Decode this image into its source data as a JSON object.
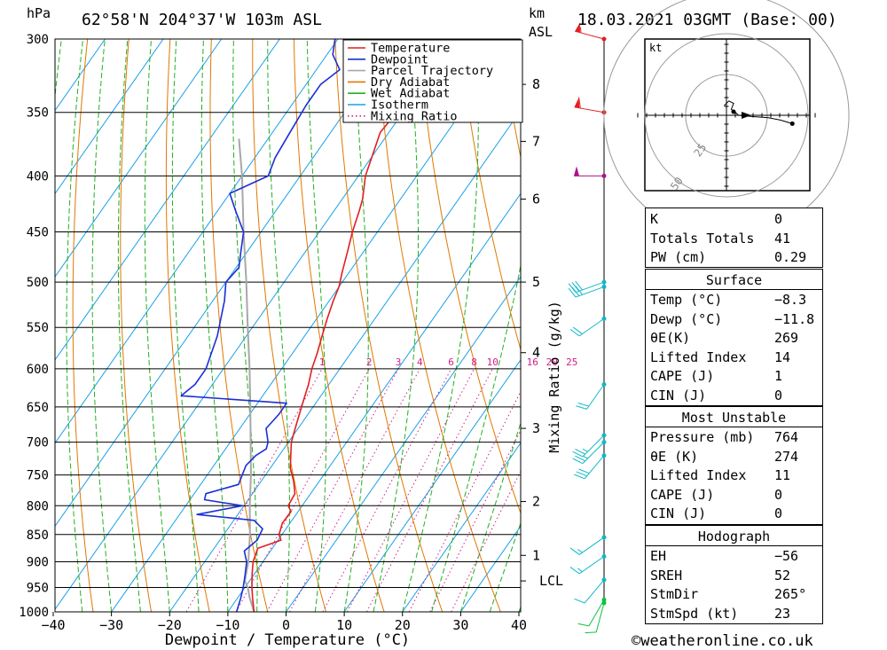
{
  "header": {
    "unit_hpa": "hPa",
    "location": "62°58'N 204°37'W 103m ASL",
    "unit_km": "km",
    "unit_asl": "ASL",
    "datetime": "18.03.2021 03GMT (Base: 00)"
  },
  "chart_data": {
    "type": "skewt",
    "title": "62°58'N 204°37'W 103m ASL",
    "xlabel": "Dewpoint / Temperature (°C)",
    "ylabel_right": "Mixing Ratio (g/kg)",
    "xlim": [
      -40,
      40
    ],
    "ylim_hpa": [
      1000,
      300
    ],
    "x_ticks": [
      -40,
      -30,
      -20,
      -10,
      0,
      10,
      20,
      30,
      40
    ],
    "x_tick_labels": [
      "−40",
      "−30",
      "−20",
      "−10",
      "0",
      "10",
      "20",
      "30",
      "40"
    ],
    "pressure_levels": [
      300,
      350,
      400,
      450,
      500,
      550,
      600,
      650,
      700,
      750,
      800,
      850,
      900,
      950,
      1000
    ],
    "height_km": [
      {
        "label": "8",
        "p": 330
      },
      {
        "label": "7",
        "p": 372
      },
      {
        "label": "6",
        "p": 420
      },
      {
        "label": "5",
        "p": 500
      },
      {
        "label": "4",
        "p": 580
      },
      {
        "label": "3",
        "p": 680
      },
      {
        "label": "2",
        "p": 793
      },
      {
        "label": "1",
        "p": 888
      },
      {
        "label": "LCL",
        "p": 937
      }
    ],
    "mixing_ratio_labels": [
      "1",
      "2",
      "3",
      "4",
      "6",
      "8",
      "10",
      "16",
      "20",
      "25"
    ],
    "mixing_ratio_values": [
      1,
      2,
      3,
      4,
      6,
      8,
      10,
      16,
      20,
      25
    ],
    "legend": {
      "position": "top-right",
      "items": [
        {
          "label": "Temperature",
          "color": "#e02020",
          "style": "solid"
        },
        {
          "label": "Dewpoint",
          "color": "#1a2fd8",
          "style": "solid"
        },
        {
          "label": "Parcel Trajectory",
          "color": "#a8a8a8",
          "style": "solid"
        },
        {
          "label": "Dry Adiabat",
          "color": "#e07800",
          "style": "solid"
        },
        {
          "label": "Wet Adiabat",
          "color": "#22b022",
          "style": "solid"
        },
        {
          "label": "Isotherm",
          "color": "#1aa0e8",
          "style": "solid"
        },
        {
          "label": "Mixing Ratio",
          "color": "#d0208a",
          "style": "dotted"
        }
      ]
    },
    "series": [
      {
        "name": "Temperature",
        "color": "#e02020",
        "points": [
          [
            1000,
            -5.5
          ],
          [
            970,
            -7.5
          ],
          [
            950,
            -8.8
          ],
          [
            925,
            -10.3
          ],
          [
            900,
            -11.7
          ],
          [
            875,
            -12.5
          ],
          [
            860,
            -9.5
          ],
          [
            850,
            -10.5
          ],
          [
            830,
            -11.3
          ],
          [
            810,
            -11.2
          ],
          [
            800,
            -12.4
          ],
          [
            780,
            -12.7
          ],
          [
            760,
            -14.4
          ],
          [
            740,
            -16.5
          ],
          [
            720,
            -18.0
          ],
          [
            700,
            -19.5
          ],
          [
            680,
            -20.5
          ],
          [
            660,
            -21.5
          ],
          [
            640,
            -22.5
          ],
          [
            620,
            -23.5
          ],
          [
            600,
            -24.8
          ],
          [
            580,
            -25.8
          ],
          [
            560,
            -27.0
          ],
          [
            540,
            -28.2
          ],
          [
            520,
            -29.3
          ],
          [
            505,
            -30.0
          ],
          [
            490,
            -31.2
          ],
          [
            470,
            -32.7
          ],
          [
            450,
            -34.3
          ],
          [
            430,
            -35.7
          ],
          [
            420,
            -36.5
          ],
          [
            400,
            -38.8
          ],
          [
            380,
            -40.3
          ],
          [
            365,
            -41.5
          ],
          [
            355,
            -41.2
          ],
          [
            340,
            -43.0
          ],
          [
            325,
            -44.5
          ],
          [
            310,
            -46.3
          ],
          [
            300,
            -47.5
          ]
        ]
      },
      {
        "name": "Dewpoint",
        "color": "#1a2fd8",
        "points": [
          [
            1000,
            -8.5
          ],
          [
            970,
            -9.5
          ],
          [
            950,
            -10.3
          ],
          [
            925,
            -11.5
          ],
          [
            900,
            -12.8
          ],
          [
            880,
            -14.5
          ],
          [
            860,
            -13.6
          ],
          [
            840,
            -14.0
          ],
          [
            825,
            -16.5
          ],
          [
            815,
            -27.0
          ],
          [
            800,
            -20.3
          ],
          [
            790,
            -27.5
          ],
          [
            780,
            -28.0
          ],
          [
            765,
            -23.5
          ],
          [
            750,
            -24.0
          ],
          [
            735,
            -24.5
          ],
          [
            720,
            -24.0
          ],
          [
            710,
            -23.0
          ],
          [
            700,
            -23.5
          ],
          [
            680,
            -25.5
          ],
          [
            660,
            -25.0
          ],
          [
            645,
            -25.0
          ],
          [
            635,
            -44.0
          ],
          [
            620,
            -43.0
          ],
          [
            600,
            -43.0
          ],
          [
            560,
            -45.0
          ],
          [
            520,
            -48.0
          ],
          [
            500,
            -50.0
          ],
          [
            485,
            -49.5
          ],
          [
            470,
            -51.0
          ],
          [
            450,
            -53.0
          ],
          [
            430,
            -57.0
          ],
          [
            415,
            -60.0
          ],
          [
            400,
            -55.5
          ],
          [
            385,
            -56.5
          ],
          [
            365,
            -57.0
          ],
          [
            345,
            -57.5
          ],
          [
            330,
            -57.5
          ],
          [
            320,
            -56.0
          ],
          [
            310,
            -59.0
          ],
          [
            300,
            -60.5
          ]
        ]
      },
      {
        "name": "Parcel Trajectory",
        "color": "#a8a8a8",
        "points": [
          [
            1000,
            -5.5
          ],
          [
            970,
            -8.0
          ],
          [
            950,
            -9.5
          ],
          [
            937,
            -10.8
          ],
          [
            900,
            -12.5
          ],
          [
            850,
            -15.5
          ],
          [
            800,
            -19.0
          ],
          [
            750,
            -22.5
          ],
          [
            700,
            -26.5
          ],
          [
            650,
            -30.8
          ],
          [
            600,
            -35.5
          ],
          [
            550,
            -40.8
          ],
          [
            500,
            -46.5
          ],
          [
            450,
            -53.0
          ],
          [
            400,
            -60.0
          ],
          [
            370,
            -65.0
          ]
        ]
      }
    ],
    "wind_barbs": [
      {
        "p": 300,
        "dir": 285,
        "speed": 55
      },
      {
        "p": 350,
        "dir": 280,
        "speed": 60
      },
      {
        "p": 400,
        "dir": 270,
        "speed": 50
      },
      {
        "p": 500,
        "dir": 250,
        "speed": 30
      },
      {
        "p": 505,
        "dir": 250,
        "speed": 30
      },
      {
        "p": 540,
        "dir": 235,
        "speed": 20
      },
      {
        "p": 620,
        "dir": 215,
        "speed": 20
      },
      {
        "p": 690,
        "dir": 225,
        "speed": 25
      },
      {
        "p": 700,
        "dir": 225,
        "speed": 25
      },
      {
        "p": 720,
        "dir": 220,
        "speed": 30
      },
      {
        "p": 855,
        "dir": 235,
        "speed": 15
      },
      {
        "p": 890,
        "dir": 235,
        "speed": 15
      },
      {
        "p": 935,
        "dir": 220,
        "speed": 10
      },
      {
        "p": 975,
        "dir": 210,
        "speed": 10
      },
      {
        "p": 995,
        "dir": 195,
        "speed": 10
      }
    ]
  },
  "hodograph": {
    "unit": "kt",
    "ring_labels": [
      "25",
      "50",
      "75"
    ],
    "path": [
      [
        -2,
        8
      ],
      [
        2,
        12
      ],
      [
        6,
        10
      ],
      [
        4,
        5
      ],
      [
        8,
        2
      ],
      [
        10,
        0
      ],
      [
        20,
        -1
      ],
      [
        35,
        -2
      ],
      [
        45,
        -4
      ],
      [
        55,
        -7
      ]
    ]
  },
  "indices": {
    "rows": [
      {
        "label": "K",
        "value": "0"
      },
      {
        "label": "Totals Totals",
        "value": "41"
      },
      {
        "label": "PW (cm)",
        "value": "0.29"
      }
    ]
  },
  "surface": {
    "title": "Surface",
    "rows": [
      {
        "label": "Temp (°C)",
        "value": "−8.3"
      },
      {
        "label": "Dewp (°C)",
        "value": "−11.8"
      },
      {
        "label": "θE(K)",
        "value": "269"
      },
      {
        "label": "Lifted Index",
        "value": "14"
      },
      {
        "label": "CAPE (J)",
        "value": "1"
      },
      {
        "label": "CIN (J)",
        "value": "0"
      }
    ]
  },
  "most_unstable": {
    "title": "Most Unstable",
    "rows": [
      {
        "label": "Pressure (mb)",
        "value": "764"
      },
      {
        "label": "θE (K)",
        "value": "274"
      },
      {
        "label": "Lifted Index",
        "value": "11"
      },
      {
        "label": "CAPE (J)",
        "value": "0"
      },
      {
        "label": "CIN (J)",
        "value": "0"
      }
    ]
  },
  "hodo_table": {
    "title": "Hodograph",
    "rows": [
      {
        "label": "EH",
        "value": "−56"
      },
      {
        "label": "SREH",
        "value": "52"
      },
      {
        "label": "StmDir",
        "value": "265°"
      },
      {
        "label": "StmSpd (kt)",
        "value": "23"
      }
    ]
  },
  "footer": {
    "copyright": "©weatheronline.co.uk"
  },
  "colors": {
    "temperature": "#e02020",
    "dewpoint": "#1a2fd8",
    "parcel": "#a8a8a8",
    "dry_adiabat": "#e07800",
    "wet_adiabat": "#22b022",
    "isotherm": "#1aa0e8",
    "mixing_ratio": "#d0208a",
    "wind_red": "#e02020",
    "wind_magenta": "#b0108a",
    "wind_cyan": "#10b8c8",
    "wind_green": "#10c040"
  }
}
